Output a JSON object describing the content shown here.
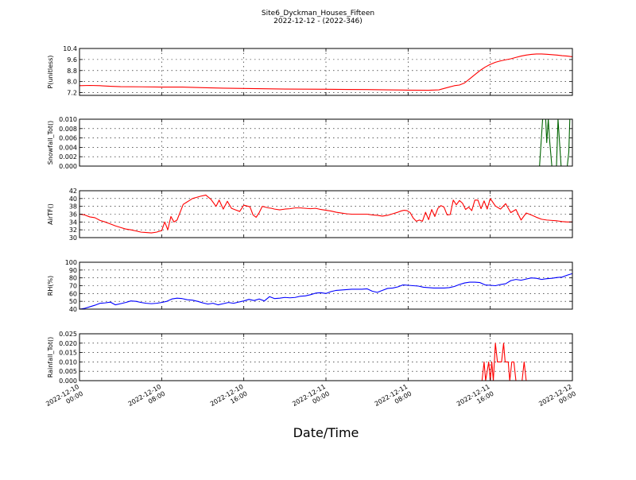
{
  "figure": {
    "title_line1": "Site6_Dyckman_Houses_Fifteen",
    "title_line2": "2022-12-12 - (2022-346)",
    "xlabel": "Date/Time",
    "x_tick_labels": [
      [
        "2022-12-10",
        "00:00"
      ],
      [
        "2022-12-10",
        "08:00"
      ],
      [
        "2022-12-10",
        "16:00"
      ],
      [
        "2022-12-11",
        "00:00"
      ],
      [
        "2022-12-11",
        "08:00"
      ],
      [
        "2022-12-11",
        "16:00"
      ],
      [
        "2022-12-12",
        "00:00"
      ]
    ]
  },
  "chart_data": [
    {
      "type": "line",
      "ylabel": "P(unitless)",
      "ylim": [
        7.0,
        10.4
      ],
      "yticks": [
        7.2,
        8.0,
        8.8,
        9.6,
        10.4
      ],
      "ytick_labels": [
        "7.2",
        "8.0",
        "8.8",
        "9.6",
        "10.4"
      ],
      "grid": true,
      "color": "#ff0000",
      "x": [
        0,
        1,
        2,
        3,
        4,
        6,
        8,
        10,
        12,
        14,
        16,
        18,
        20,
        22,
        24,
        26,
        28,
        30,
        32,
        34,
        35,
        35.5,
        36,
        36.5,
        37,
        37.5,
        38,
        38.5,
        39,
        39.5,
        40,
        40.5,
        41,
        41.5,
        42,
        42.5,
        43,
        43.5,
        44,
        44.5,
        45,
        45.5,
        46,
        46.5,
        47,
        47.5,
        48
      ],
      "y": [
        7.7,
        7.72,
        7.7,
        7.66,
        7.63,
        7.62,
        7.6,
        7.6,
        7.56,
        7.52,
        7.5,
        7.48,
        7.46,
        7.45,
        7.44,
        7.43,
        7.42,
        7.4,
        7.38,
        7.37,
        7.4,
        7.5,
        7.6,
        7.7,
        7.75,
        7.9,
        8.2,
        8.5,
        8.8,
        9.05,
        9.25,
        9.4,
        9.5,
        9.58,
        9.65,
        9.75,
        9.85,
        9.92,
        9.97,
        10.0,
        10.0,
        9.98,
        9.95,
        9.92,
        9.88,
        9.85,
        9.8
      ]
    },
    {
      "type": "line",
      "ylabel": "Snowfall_Tot()",
      "ylim": [
        0.0,
        0.01
      ],
      "yticks": [
        0.0,
        0.002,
        0.004,
        0.006,
        0.008,
        0.01
      ],
      "ytick_labels": [
        "0.000",
        "0.002",
        "0.004",
        "0.006",
        "0.008",
        "0.010"
      ],
      "grid": true,
      "color": "#006400",
      "x": [
        0,
        44.6,
        44.8,
        45.1,
        45.3,
        45.4,
        45.5,
        45.65,
        45.8,
        46.0,
        46.15,
        46.3,
        46.45,
        46.6,
        46.75,
        46.9,
        47.1,
        47.3,
        47.5,
        47.65,
        47.75,
        47.85,
        48
      ],
      "y": [
        0,
        0,
        0,
        0.01,
        0.01,
        0.01,
        0.005,
        0.01,
        0.005,
        0,
        0,
        0,
        0,
        0.01,
        0.005,
        0,
        0,
        0,
        0,
        0.003,
        0.01,
        0.01,
        0.01
      ]
    },
    {
      "type": "line",
      "ylabel": "AirTF()",
      "ylim": [
        30,
        42
      ],
      "yticks": [
        30,
        32,
        34,
        36,
        38,
        40,
        42
      ],
      "ytick_labels": [
        "30",
        "32",
        "34",
        "36",
        "38",
        "40",
        "42"
      ],
      "grid": true,
      "color": "#ff0000",
      "x": [
        0,
        0.5,
        1,
        1.5,
        2,
        2.5,
        3,
        3.5,
        4,
        4.5,
        5,
        5.5,
        6,
        6.5,
        7,
        7.5,
        8,
        8.3,
        8.6,
        8.9,
        9.2,
        9.5,
        9.8,
        10.1,
        10.4,
        10.7,
        11,
        11.4,
        11.8,
        12.3,
        12.8,
        13.3,
        13.6,
        14,
        14.4,
        14.8,
        15.2,
        15.6,
        16,
        16.3,
        16.6,
        16.9,
        17.2,
        17.5,
        17.8,
        18.1,
        18.4,
        18.7,
        19,
        19.5,
        20,
        20.5,
        21,
        21.5,
        22,
        22.5,
        23,
        23.5,
        24,
        24.5,
        25,
        25.5,
        26,
        26.5,
        27,
        27.5,
        28,
        28.5,
        29,
        29.5,
        30,
        30.5,
        31,
        31.3,
        31.6,
        31.9,
        32.2,
        32.5,
        32.8,
        33.1,
        33.4,
        33.7,
        34,
        34.3,
        34.6,
        34.9,
        35.2,
        35.5,
        35.8,
        36.1,
        36.4,
        36.7,
        37,
        37.3,
        37.6,
        37.9,
        38.2,
        38.5,
        38.8,
        39.1,
        39.4,
        39.7,
        40,
        40.5,
        41,
        41.5,
        42,
        42.5,
        43,
        43.5,
        44,
        44.5,
        45,
        45.5,
        46,
        46.5,
        47,
        47.5,
        48
      ],
      "y": [
        36,
        35.8,
        35.3,
        35.1,
        34.4,
        34,
        33.5,
        33,
        32.6,
        32.2,
        32,
        31.7,
        31.4,
        31.3,
        31.2,
        31.4,
        31.8,
        34,
        32,
        35.4,
        34,
        34.5,
        36.5,
        38.5,
        39,
        39.5,
        40,
        40.3,
        40.6,
        40.9,
        39.8,
        38,
        39.6,
        37.3,
        39.3,
        37.5,
        37.1,
        36.7,
        38.3,
        38.1,
        37.9,
        35.8,
        35.2,
        36.4,
        38,
        37.8,
        37.6,
        37.5,
        37.3,
        37.1,
        37.3,
        37.4,
        37.6,
        37.6,
        37.5,
        37.4,
        37.5,
        37.2,
        37,
        36.8,
        36.5,
        36.3,
        36.1,
        36,
        36,
        36,
        36,
        35.8,
        35.7,
        35.5,
        35.7,
        36.1,
        36.5,
        36.8,
        37,
        36.9,
        36.4,
        35,
        34.2,
        34.5,
        34.2,
        36.5,
        34.6,
        37.2,
        35.4,
        37.5,
        38.2,
        37.8,
        35.8,
        35.9,
        39.6,
        38.4,
        39.5,
        38.8,
        37.2,
        37.8,
        36.9,
        39.6,
        39.6,
        37.4,
        39.4,
        37.3,
        40,
        38.1,
        37.3,
        38.7,
        36.4,
        37.2,
        34.5,
        36.3,
        35.8,
        35.2,
        34.7,
        34.5,
        34.4,
        34.3,
        34.1,
        34,
        34
      ]
    },
    {
      "type": "line",
      "ylabel": "RH(%)",
      "ylim": [
        40,
        100
      ],
      "yticks": [
        40,
        50,
        60,
        70,
        80,
        90,
        100
      ],
      "ytick_labels": [
        "40",
        "50",
        "60",
        "70",
        "80",
        "90",
        "100"
      ],
      "grid": true,
      "color": "#0000ff",
      "x": [
        0,
        0.5,
        1,
        1.5,
        2,
        2.5,
        3,
        3.5,
        4,
        4.5,
        5,
        5.5,
        6,
        6.5,
        7,
        7.5,
        8,
        8.5,
        9,
        9.5,
        10,
        10.5,
        11,
        11.5,
        12,
        12.5,
        13,
        13.5,
        14,
        14.5,
        15,
        15.5,
        16,
        16.5,
        17,
        17.5,
        18,
        18.5,
        19,
        19.5,
        20,
        20.5,
        21,
        21.5,
        22,
        22.5,
        23,
        23.5,
        24,
        24.5,
        25,
        25.5,
        26,
        26.5,
        27,
        27.5,
        28,
        28.5,
        29,
        29.5,
        30,
        30.5,
        31,
        31.5,
        32,
        32.5,
        33,
        33.5,
        34,
        34.5,
        35,
        35.5,
        36,
        36.5,
        37,
        37.5,
        38,
        38.5,
        39,
        39.5,
        40,
        40.5,
        41,
        41.5,
        42,
        42.5,
        43,
        43.5,
        44,
        44.5,
        45,
        45.5,
        46,
        46.5,
        47,
        47.5,
        48
      ],
      "y": [
        40,
        41,
        43,
        45,
        47.5,
        48,
        49,
        45.5,
        47,
        48.5,
        50.5,
        50,
        48.5,
        47.5,
        47,
        47.5,
        48.5,
        50,
        53,
        54,
        53.5,
        52,
        51.5,
        50,
        48,
        46.5,
        47.5,
        45.5,
        47,
        48.5,
        47.5,
        49,
        50.5,
        52.5,
        51,
        53,
        50.5,
        56,
        53.5,
        54,
        55,
        54.5,
        55,
        56.5,
        57,
        58.5,
        60.5,
        61,
        60,
        62.5,
        64,
        64.5,
        65,
        65.5,
        65.5,
        65.5,
        66,
        63,
        61.5,
        64,
        66.5,
        67,
        68.5,
        71,
        70.5,
        70,
        69.5,
        68,
        67.5,
        67,
        67,
        67,
        67.5,
        69,
        71.5,
        73.5,
        74.5,
        74.5,
        74,
        71,
        70.5,
        70,
        71.5,
        72.5,
        76.5,
        78,
        77,
        78.5,
        80,
        79.5,
        78,
        79,
        79.5,
        80.5,
        81,
        83.5,
        85.5
      ]
    },
    {
      "type": "line",
      "ylabel": "Rainfall_Tot()",
      "ylim": [
        0.0,
        0.025
      ],
      "yticks": [
        0.0,
        0.005,
        0.01,
        0.015,
        0.02,
        0.025
      ],
      "ytick_labels": [
        "0.000",
        "0.005",
        "0.010",
        "0.015",
        "0.020",
        "0.025"
      ],
      "grid": true,
      "color": "#ff0000",
      "x": [
        0,
        39.2,
        39.4,
        39.55,
        39.7,
        39.85,
        40.0,
        40.15,
        40.3,
        40.5,
        40.7,
        40.9,
        41.1,
        41.3,
        41.45,
        41.6,
        41.75,
        41.9,
        42.1,
        42.3,
        42.5,
        42.7,
        42.9,
        43.1,
        43.3,
        43.5,
        43.7,
        43.9,
        44.1,
        44.3,
        44.6,
        44.9,
        45.2,
        45.5,
        45.8,
        46.1,
        46.4,
        46.7,
        47.0,
        47.3,
        47.6,
        48
      ],
      "y": [
        0,
        0,
        0.01,
        0,
        0.005,
        0.01,
        0,
        0.01,
        0,
        0.02,
        0.01,
        0.01,
        0.01,
        0.02,
        0.01,
        0.01,
        0.01,
        0,
        0.01,
        0.01,
        0,
        0,
        0,
        0,
        0.01,
        0,
        0,
        0,
        0,
        0,
        0,
        0,
        0,
        0,
        0,
        0,
        0,
        0,
        0,
        0,
        0,
        0
      ]
    }
  ]
}
